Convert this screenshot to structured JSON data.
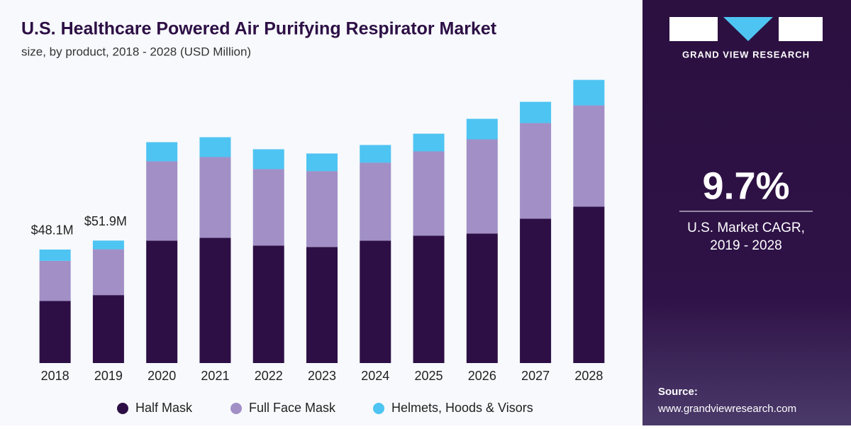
{
  "chart_data": {
    "type": "stacked_bar",
    "title": "U.S. Healthcare Powered Air Purifying Respirator Market",
    "subtitle": "size, by product, 2018 - 2028 (USD Million)",
    "categories": [
      "2018",
      "2019",
      "2020",
      "2021",
      "2022",
      "2023",
      "2024",
      "2025",
      "2026",
      "2027",
      "2028"
    ],
    "series": [
      {
        "name": "Half Mask",
        "color": "#2d0f45",
        "values": [
          26.3,
          28.8,
          51.9,
          53.1,
          49.8,
          49.2,
          51.9,
          54.0,
          54.9,
          61.2,
          66.3
        ]
      },
      {
        "name": "Full Face Mask",
        "color": "#a18fc6",
        "values": [
          17.0,
          19.4,
          33.6,
          34.2,
          32.4,
          32.1,
          33.0,
          35.7,
          39.9,
          40.5,
          42.9
        ]
      },
      {
        "name": "Helmets, Hoods & Visors",
        "color": "#4ec4f2",
        "values": [
          4.8,
          3.7,
          8.1,
          8.4,
          8.4,
          7.5,
          7.5,
          7.5,
          8.7,
          9.0,
          10.8
        ]
      }
    ],
    "totals": {
      "values": [
        48.1,
        51.9
      ],
      "value_labels": [
        "$48.1M",
        "$51.9M"
      ]
    },
    "ylim": [
      0,
      125
    ]
  },
  "panel": {
    "brand": "GRAND VIEW RESEARCH",
    "cagr": "9.7%",
    "cagr_label": "U.S. Market CAGR,",
    "cagr_period": "2019 - 2028",
    "source_label": "Source:",
    "source_url": "www.grandviewresearch.com"
  }
}
